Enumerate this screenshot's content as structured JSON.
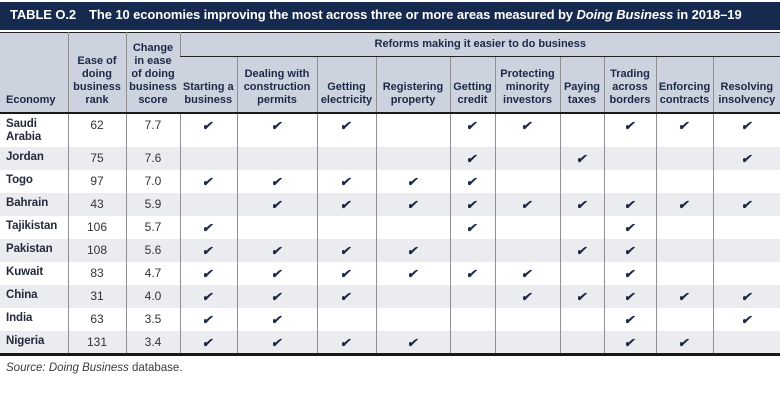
{
  "title": {
    "label": "TABLE O.2",
    "text_pre": "The 10 economies improving the most across three or more areas measured by ",
    "text_italic": "Doing Business",
    "text_post": " in 2018–19"
  },
  "table": {
    "check_glyph": "✔",
    "header": {
      "economy": "Economy",
      "rank": "Ease of doing business rank",
      "score_change": "Change in ease of doing business score",
      "reforms_group": "Reforms making it easier to do business",
      "reform_columns": [
        "Starting a business",
        "Dealing with construction permits",
        "Getting electricity",
        "Registering property",
        "Getting credit",
        "Protecting minority investors",
        "Paying taxes",
        "Trading across borders",
        "Enforcing contracts",
        "Resolving insolvency"
      ]
    },
    "rows": [
      {
        "economy": "Saudi Arabia",
        "rank": "62",
        "score_change": "7.7",
        "reforms": [
          1,
          1,
          1,
          0,
          1,
          1,
          0,
          1,
          1,
          1
        ]
      },
      {
        "economy": "Jordan",
        "rank": "75",
        "score_change": "7.6",
        "reforms": [
          0,
          0,
          0,
          0,
          1,
          0,
          1,
          0,
          0,
          1
        ]
      },
      {
        "economy": "Togo",
        "rank": "97",
        "score_change": "7.0",
        "reforms": [
          1,
          1,
          1,
          1,
          1,
          0,
          0,
          0,
          0,
          0
        ]
      },
      {
        "economy": "Bahrain",
        "rank": "43",
        "score_change": "5.9",
        "reforms": [
          0,
          1,
          1,
          1,
          1,
          1,
          1,
          1,
          1,
          1
        ]
      },
      {
        "economy": "Tajikistan",
        "rank": "106",
        "score_change": "5.7",
        "reforms": [
          1,
          0,
          0,
          0,
          1,
          0,
          0,
          1,
          0,
          0
        ]
      },
      {
        "economy": "Pakistan",
        "rank": "108",
        "score_change": "5.6",
        "reforms": [
          1,
          1,
          1,
          1,
          0,
          0,
          1,
          1,
          0,
          0
        ]
      },
      {
        "economy": "Kuwait",
        "rank": "83",
        "score_change": "4.7",
        "reforms": [
          1,
          1,
          1,
          1,
          1,
          1,
          0,
          1,
          0,
          0
        ]
      },
      {
        "economy": "China",
        "rank": "31",
        "score_change": "4.0",
        "reforms": [
          1,
          1,
          1,
          0,
          0,
          1,
          1,
          1,
          1,
          1
        ]
      },
      {
        "economy": "India",
        "rank": "63",
        "score_change": "3.5",
        "reforms": [
          1,
          1,
          0,
          0,
          0,
          0,
          0,
          1,
          0,
          1
        ]
      },
      {
        "economy": "Nigeria",
        "rank": "131",
        "score_change": "3.4",
        "reforms": [
          1,
          1,
          1,
          1,
          0,
          0,
          0,
          1,
          1,
          0
        ]
      }
    ]
  },
  "source": {
    "label": "Source:",
    "publication": "Doing Business",
    "rest": "database."
  },
  "colors": {
    "title_bar_bg": "#16294e",
    "header_bg": "#ccd3df",
    "row_alt_bg": "#ebecef",
    "accent_navy": "#1b2946"
  }
}
